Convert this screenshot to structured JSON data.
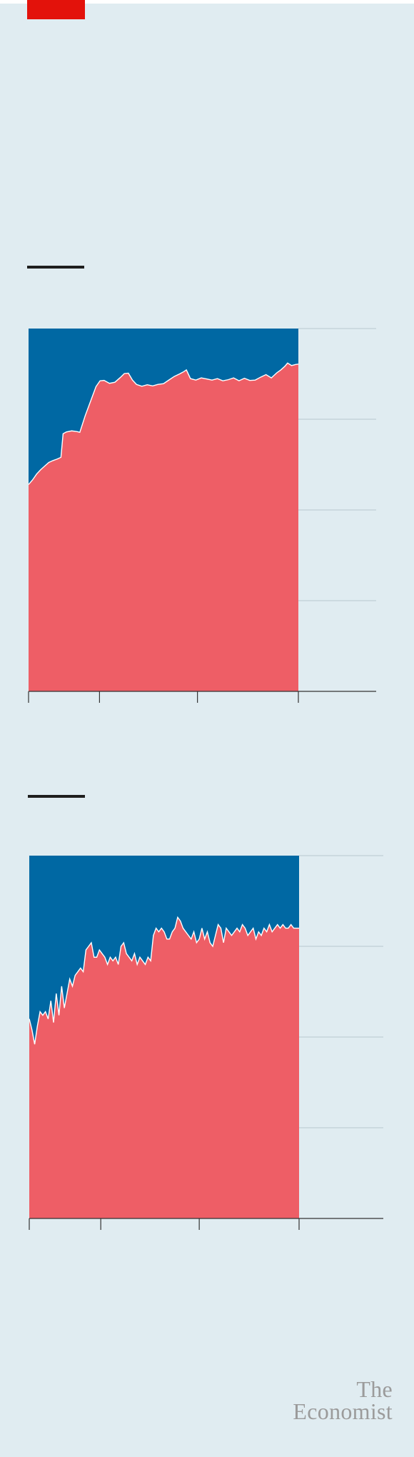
{
  "brand": {
    "line1": "The",
    "line2": "Economist",
    "color": "#9b9b9b"
  },
  "colors": {
    "accent": "#e3120b",
    "series_upper": "#0068a3",
    "series_lower": "#ee5e66",
    "gridline": "#b7c7cf",
    "axis": "#333333",
    "background": "#e0ecf1"
  },
  "chart_data": [
    {
      "type": "area",
      "stacked": true,
      "percent_stacked": true,
      "ylim": [
        0,
        100
      ],
      "yticks": [
        0,
        25,
        50,
        75,
        100
      ],
      "grid": true,
      "x_range": [
        0,
        100
      ],
      "xticks": [
        0,
        26.3,
        62.6,
        100
      ],
      "series": [
        {
          "color": "#ee5e66",
          "points": [
            [
              0,
              57
            ],
            [
              1.5,
              58.3
            ],
            [
              3,
              59.9
            ],
            [
              4.5,
              61.1
            ],
            [
              6,
              62.1
            ],
            [
              7.5,
              63.1
            ],
            [
              9,
              63.6
            ],
            [
              10.5,
              64
            ],
            [
              12,
              64.5
            ],
            [
              12.8,
              71
            ],
            [
              14,
              71.5
            ],
            [
              16,
              71.8
            ],
            [
              18,
              71.6
            ],
            [
              19,
              71.4
            ],
            [
              21,
              76
            ],
            [
              23,
              80
            ],
            [
              25,
              84
            ],
            [
              26.5,
              85.6
            ],
            [
              28,
              85.7
            ],
            [
              30,
              84.9
            ],
            [
              32,
              85.2
            ],
            [
              34,
              86.5
            ],
            [
              35.5,
              87.6
            ],
            [
              37,
              87.7
            ],
            [
              38.5,
              85.8
            ],
            [
              40,
              84.6
            ],
            [
              42,
              84.1
            ],
            [
              44,
              84.5
            ],
            [
              46,
              84.2
            ],
            [
              48,
              84.6
            ],
            [
              50,
              84.8
            ],
            [
              52,
              85.8
            ],
            [
              54,
              86.8
            ],
            [
              56,
              87.5
            ],
            [
              57.5,
              88.1
            ],
            [
              58.5,
              88.6
            ],
            [
              60,
              86.2
            ],
            [
              62,
              85.8
            ],
            [
              64,
              86.4
            ],
            [
              66,
              86.1
            ],
            [
              68,
              85.8
            ],
            [
              70,
              86.2
            ],
            [
              72,
              85.6
            ],
            [
              74,
              85.9
            ],
            [
              76,
              86.4
            ],
            [
              78,
              85.6
            ],
            [
              80,
              86.3
            ],
            [
              82,
              85.7
            ],
            [
              84,
              85.8
            ],
            [
              86,
              86.6
            ],
            [
              88,
              87.3
            ],
            [
              90,
              86.4
            ],
            [
              92,
              87.8
            ],
            [
              93.5,
              88.6
            ],
            [
              95,
              89.6
            ],
            [
              96,
              90.5
            ],
            [
              97.5,
              89.8
            ],
            [
              99,
              90.1
            ],
            [
              100,
              90.2
            ]
          ]
        },
        {
          "color": "#0068a3"
        }
      ]
    },
    {
      "type": "area",
      "stacked": true,
      "percent_stacked": true,
      "ylim": [
        0,
        100
      ],
      "yticks": [
        0,
        25,
        50,
        75,
        100
      ],
      "grid": true,
      "x_range": [
        0,
        100
      ],
      "xticks": [
        0,
        26.5,
        63,
        100
      ],
      "series": [
        {
          "color": "#ee5e66",
          "points": [
            [
              0,
              55
            ],
            [
              1,
              52
            ],
            [
              2,
              48
            ],
            [
              3,
              53
            ],
            [
              4,
              57
            ],
            [
              5,
              56
            ],
            [
              6,
              57
            ],
            [
              7,
              55
            ],
            [
              8,
              60
            ],
            [
              9,
              54
            ],
            [
              10,
              62
            ],
            [
              11,
              56
            ],
            [
              12,
              64
            ],
            [
              13,
              58
            ],
            [
              14,
              62
            ],
            [
              15,
              66
            ],
            [
              16,
              64
            ],
            [
              17,
              67
            ],
            [
              18,
              68
            ],
            [
              19,
              69
            ],
            [
              20,
              68
            ],
            [
              21,
              74
            ],
            [
              22,
              75
            ],
            [
              23,
              76
            ],
            [
              24,
              72
            ],
            [
              25,
              72
            ],
            [
              26,
              74
            ],
            [
              27,
              73
            ],
            [
              28,
              72
            ],
            [
              29,
              70
            ],
            [
              30,
              72
            ],
            [
              31,
              71
            ],
            [
              32,
              72
            ],
            [
              33,
              70
            ],
            [
              34,
              75
            ],
            [
              35,
              76
            ],
            [
              36,
              73
            ],
            [
              37,
              72
            ],
            [
              38,
              71
            ],
            [
              39,
              73
            ],
            [
              40,
              70
            ],
            [
              41,
              72
            ],
            [
              42,
              71
            ],
            [
              43,
              70
            ],
            [
              44,
              72
            ],
            [
              45,
              71
            ],
            [
              46,
              78
            ],
            [
              47,
              80
            ],
            [
              48,
              79
            ],
            [
              49,
              80
            ],
            [
              50,
              79
            ],
            [
              51,
              77
            ],
            [
              52,
              77
            ],
            [
              53,
              79
            ],
            [
              54,
              80
            ],
            [
              55,
              83
            ],
            [
              56,
              82
            ],
            [
              57,
              80
            ],
            [
              58,
              79
            ],
            [
              59,
              78
            ],
            [
              60,
              77
            ],
            [
              61,
              79
            ],
            [
              62,
              76
            ],
            [
              63,
              77
            ],
            [
              64,
              80
            ],
            [
              65,
              77
            ],
            [
              66,
              79
            ],
            [
              67,
              76
            ],
            [
              68,
              75
            ],
            [
              69,
              78
            ],
            [
              70,
              81
            ],
            [
              71,
              80
            ],
            [
              72,
              76
            ],
            [
              73,
              80
            ],
            [
              74,
              79
            ],
            [
              75,
              78
            ],
            [
              76,
              79
            ],
            [
              77,
              80
            ],
            [
              78,
              79
            ],
            [
              79,
              81
            ],
            [
              80,
              80
            ],
            [
              81,
              78
            ],
            [
              82,
              79
            ],
            [
              83,
              80
            ],
            [
              84,
              77
            ],
            [
              85,
              79
            ],
            [
              86,
              78
            ],
            [
              87,
              80
            ],
            [
              88,
              79
            ],
            [
              89,
              81
            ],
            [
              90,
              79
            ],
            [
              91,
              80
            ],
            [
              92,
              81
            ],
            [
              93,
              80
            ],
            [
              94,
              81
            ],
            [
              95,
              80
            ],
            [
              96,
              80
            ],
            [
              97,
              81
            ],
            [
              98,
              80
            ],
            [
              99,
              80
            ],
            [
              100,
              80
            ]
          ]
        },
        {
          "color": "#0068a3"
        }
      ]
    }
  ]
}
